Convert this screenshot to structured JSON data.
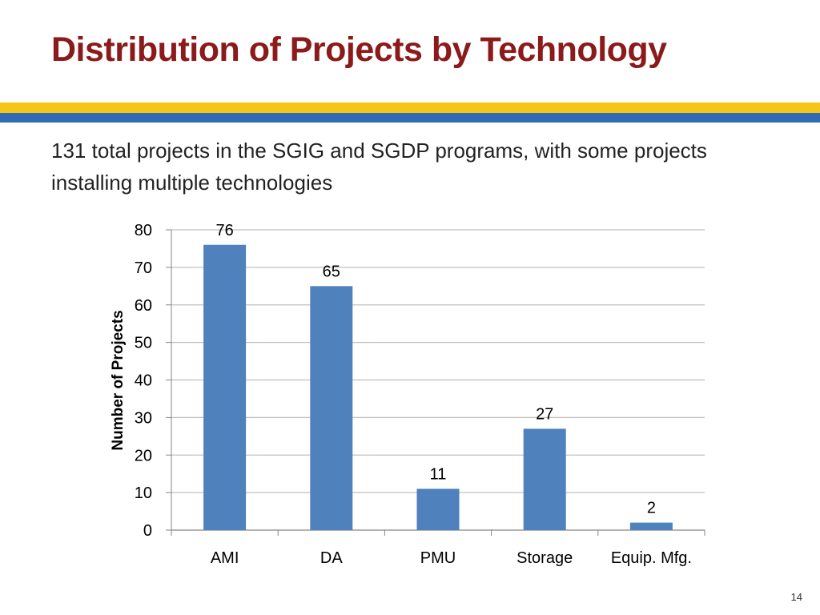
{
  "slide": {
    "title": "Distribution of Projects by Technology",
    "subtitle": "131 total projects in the SGIG and SGDP programs, with some projects installing multiple technologies",
    "page_number": "14"
  },
  "colors": {
    "title": "#8b1a1a",
    "band_yellow": "#f5c518",
    "band_blue": "#2e6db4",
    "bar": "#4f81bd",
    "grid": "#bfbfbf"
  },
  "chart_data": {
    "type": "bar",
    "title": "",
    "xlabel": "",
    "ylabel": "Number of Projects",
    "categories": [
      "AMI",
      "DA",
      "PMU",
      "Storage",
      "Equip. Mfg."
    ],
    "values": [
      76,
      65,
      11,
      27,
      2
    ],
    "data_labels": [
      "76",
      "65",
      "11",
      "27",
      "2"
    ],
    "ylim": [
      0,
      80
    ],
    "yticks": [
      0,
      10,
      20,
      30,
      40,
      50,
      60,
      70,
      80
    ],
    "grid": true,
    "legend": "none"
  }
}
